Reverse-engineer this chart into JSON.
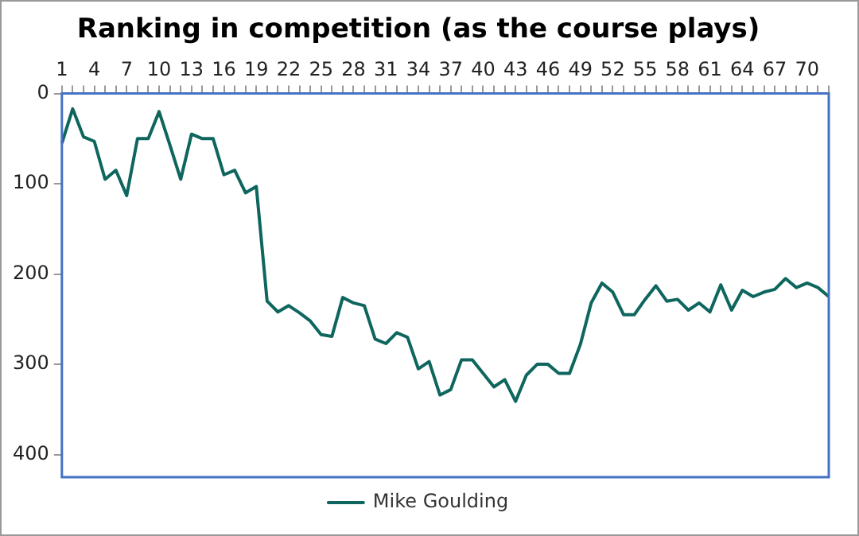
{
  "chart_data": {
    "type": "line",
    "title": "Ranking in competition (as the course plays)",
    "categories": [
      "1",
      null,
      null,
      "4",
      null,
      null,
      "7",
      null,
      null,
      "10",
      null,
      null,
      "13",
      null,
      null,
      "16",
      null,
      null,
      "19",
      null,
      null,
      "22",
      null,
      null,
      "25",
      null,
      null,
      "28",
      null,
      null,
      "31",
      null,
      null,
      "34",
      null,
      null,
      "37",
      null,
      null,
      "40",
      null,
      null,
      "43",
      null,
      null,
      "46",
      null,
      null,
      "49",
      null,
      null,
      "52",
      null,
      null,
      "55",
      null,
      null,
      "58",
      null,
      null,
      "61",
      null,
      null,
      "64",
      null,
      null,
      "67",
      null,
      null,
      "70",
      null,
      null
    ],
    "series": [
      {
        "name": "Mike Goulding",
        "color": "#0e665e",
        "values": [
          55,
          17,
          48,
          53,
          95,
          85,
          113,
          50,
          50,
          20,
          57,
          95,
          45,
          50,
          50,
          90,
          85,
          110,
          103,
          230,
          242,
          235,
          243,
          252,
          267,
          269,
          226,
          232,
          235,
          272,
          277,
          265,
          270,
          305,
          297,
          334,
          328,
          295,
          295,
          310,
          325,
          317,
          341,
          312,
          300,
          300,
          310,
          310,
          278,
          232,
          210,
          220,
          245,
          245,
          228,
          213,
          230,
          228,
          240,
          232,
          242,
          212,
          240,
          218,
          225,
          220,
          217,
          205,
          215,
          210,
          215,
          225
        ]
      }
    ],
    "ylim": [
      425,
      0
    ],
    "yticks": [
      0,
      100,
      200,
      300,
      400
    ],
    "grid": false,
    "legend": "bottom",
    "marker": "none",
    "line_style": "solid"
  }
}
